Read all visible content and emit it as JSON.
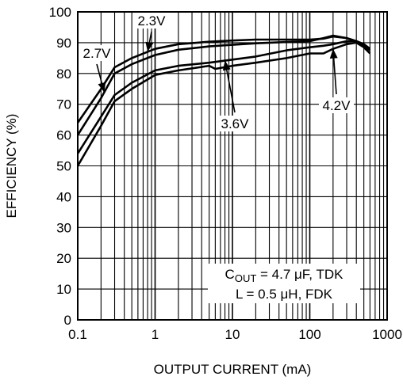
{
  "chart_data": {
    "type": "line",
    "xscale": "log",
    "xlim": [
      0.1,
      1000
    ],
    "ylim": [
      0,
      100
    ],
    "xlabel": "OUTPUT CURRENT (mA)",
    "ylabel": "EFFICIENCY (%)",
    "xticks": [
      "0.1",
      "1",
      "10",
      "100",
      "1000"
    ],
    "yticks": [
      "0",
      "10",
      "20",
      "30",
      "40",
      "50",
      "60",
      "70",
      "80",
      "90",
      "100"
    ],
    "grid": true,
    "series": [
      {
        "name": "2.3V",
        "x": [
          0.1,
          0.2,
          0.3,
          0.5,
          1,
          2,
          5,
          10,
          20,
          50,
          100,
          150,
          200,
          300,
          400,
          500,
          600
        ],
        "y": [
          64,
          75,
          82,
          85,
          88,
          89.5,
          90.3,
          90.7,
          91,
          91,
          91,
          91.3,
          92,
          91.5,
          90.5,
          89,
          87.5
        ]
      },
      {
        "name": "2.7V",
        "x": [
          0.1,
          0.2,
          0.3,
          0.5,
          1,
          2,
          5,
          10,
          20,
          50,
          100,
          150,
          200,
          300,
          400,
          500,
          600
        ],
        "y": [
          60,
          72,
          80,
          83,
          86,
          87.7,
          88.8,
          89.3,
          89.8,
          90.2,
          90.5,
          91.5,
          92.3,
          91.5,
          90.5,
          89.5,
          88
        ]
      },
      {
        "name": "3.6V",
        "x": [
          0.1,
          0.2,
          0.3,
          0.5,
          1,
          2,
          5,
          10,
          20,
          50,
          100,
          150,
          200,
          300,
          400,
          500,
          600
        ],
        "y": [
          54,
          66,
          73,
          77,
          81,
          82.5,
          83.5,
          84.5,
          85.5,
          87.5,
          88.5,
          89,
          89.5,
          90.5,
          90.5,
          89.5,
          88
        ]
      },
      {
        "name": "4.2V",
        "x": [
          0.1,
          0.2,
          0.3,
          0.5,
          1,
          2,
          5,
          6,
          10,
          20,
          50,
          100,
          150,
          200,
          300,
          400,
          500,
          600
        ],
        "y": [
          50,
          63,
          71,
          75,
          79.5,
          81,
          82.5,
          81.5,
          82.5,
          83.5,
          85,
          86.5,
          86.5,
          88,
          89.5,
          90,
          88.5,
          86.5
        ]
      }
    ],
    "annotations": [
      {
        "label": "2.3V",
        "target": "2.3V",
        "at_x": 0.8
      },
      {
        "label": "2.7V",
        "target": "2.7V",
        "at_x": 0.22
      },
      {
        "label": "3.6V",
        "target": "3.6V",
        "at_x": 8
      },
      {
        "label": "4.2V",
        "target": "4.2V",
        "at_x": 200
      }
    ],
    "legend_box": {
      "line1_prefix": "C",
      "line1_sub": "OUT",
      "line1_rest": " = 4.7 μF, TDK",
      "line2": "L = 0.5 μH, FDK"
    }
  }
}
